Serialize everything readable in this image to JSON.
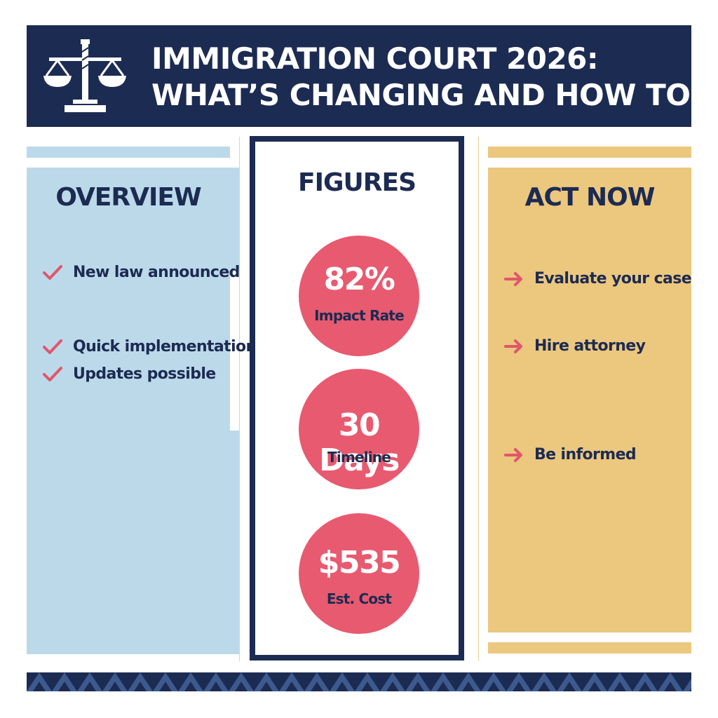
{
  "header": {
    "title_line1": "IMMIGRATION COURT 2026:",
    "title_line2": "WHAT’S CHANGING AND HOW TO",
    "icon": "scales-of-justice-icon",
    "background_color": "#1c2b52"
  },
  "overview": {
    "heading": "OVERVIEW",
    "icon": "checkmark-icon",
    "items": [
      {
        "label": "New law announced"
      },
      {
        "label": "Quick implementation"
      },
      {
        "label": "Updates possible"
      }
    ],
    "background_color": "#bcd9ea"
  },
  "figures": {
    "heading": "FIGURES",
    "stats": [
      {
        "value": "82%",
        "label": "Impact Rate"
      },
      {
        "value": "30 Days",
        "label": "Timeline"
      },
      {
        "value": "$535",
        "label": "Est. Cost"
      }
    ],
    "circle_color": "#e85a6f"
  },
  "act_now": {
    "heading": "ACT NOW",
    "icon": "arrow-right-icon",
    "items": [
      {
        "label": "Evaluate your case"
      },
      {
        "label": "Hire attorney"
      },
      {
        "label": "Be informed"
      }
    ],
    "background_color": "#ecc77e"
  },
  "footer": {
    "pattern": "diamond-pattern",
    "colors": [
      "#1c2b52",
      "#3d5a8f"
    ]
  }
}
